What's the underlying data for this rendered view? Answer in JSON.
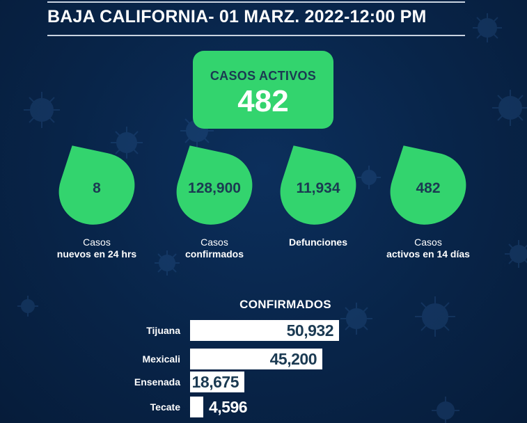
{
  "header": {
    "title": "BAJA CALIFORNIA-  01 MARZ. 2022-12:00 PM"
  },
  "active_cases": {
    "label": "CASOS ACTIVOS",
    "value": "482"
  },
  "stats": [
    {
      "value": "8",
      "caption_line1": "Casos",
      "caption_line2": "nuevos en 24 hrs"
    },
    {
      "value": "128,900",
      "caption_line1": "Casos",
      "caption_line2": "confirmados"
    },
    {
      "value": "11,934",
      "caption_line1": "",
      "caption_line2": "Defunciones"
    },
    {
      "value": "482",
      "caption_line1": "Casos",
      "caption_line2": "activos en 14 días"
    }
  ],
  "confirmed": {
    "title": "CONFIRMADOS",
    "rows": [
      {
        "label": "Tijuana",
        "value": "50,932",
        "amount": 50932
      },
      {
        "label": "Mexicali",
        "value": "45,200",
        "amount": 45200
      },
      {
        "label": "Ensenada",
        "value": "18,675",
        "amount": 18675
      },
      {
        "label": "Tecate",
        "value": "4,596",
        "amount": 4596
      }
    ]
  },
  "colors": {
    "background": "#082448",
    "accent_green": "#33d46e",
    "dark_text": "#1b3a52"
  }
}
